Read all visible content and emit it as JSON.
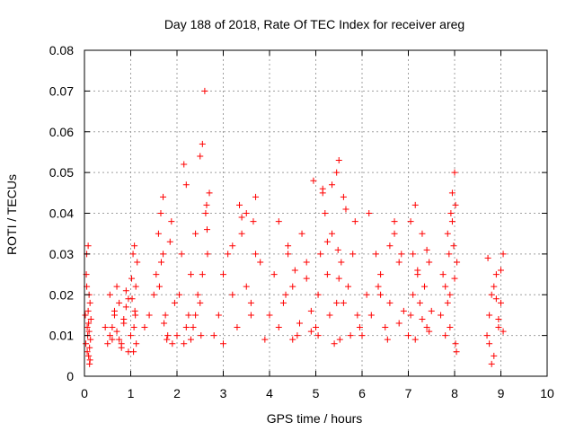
{
  "chart_data": {
    "type": "scatter",
    "title": "Day 188 of 2018, Rate Of TEC Index for receiver areg",
    "xlabel": "GPS time / hours",
    "ylabel": "ROTI / TECUs",
    "xlim": [
      0,
      10
    ],
    "ylim": [
      0,
      0.08
    ],
    "grid": true,
    "marker": "+",
    "color": "#ff0000",
    "x_ticks": [
      0,
      1,
      2,
      3,
      4,
      5,
      6,
      7,
      8,
      9,
      10
    ],
    "x_tick_labels": [
      "0",
      "1",
      "2",
      "3",
      "4",
      "5",
      "6",
      "7",
      "8",
      "9",
      "10"
    ],
    "y_ticks": [
      0,
      0.01,
      0.02,
      0.03,
      0.04,
      0.05,
      0.06,
      0.07,
      0.08
    ],
    "y_tick_labels": [
      "0",
      "0.01",
      "0.02",
      "0.03",
      "0.04",
      "0.05",
      "0.06",
      "0.07",
      "0.08"
    ],
    "series": [
      {
        "name": "ROTI",
        "x": [
          0.02,
          0.03,
          0.05,
          0.06,
          0.07,
          0.08,
          0.09,
          0.1,
          0.11,
          0.12,
          0.13,
          0.14,
          0.04,
          0.06,
          0.08,
          0.1,
          0.12,
          0.05,
          0.09,
          0.11,
          0.45,
          0.5,
          0.55,
          0.6,
          0.65,
          0.7,
          0.75,
          0.8,
          0.85,
          0.9,
          0.95,
          0.55,
          0.65,
          0.75,
          0.85,
          0.95,
          0.6,
          0.7,
          0.8,
          0.9,
          1.0,
          1.02,
          1.05,
          1.08,
          1.1,
          1.12,
          1.14,
          1.03,
          1.07,
          1.11,
          1.06,
          1.09,
          1.3,
          1.4,
          1.5,
          1.55,
          1.6,
          1.65,
          1.7,
          1.75,
          1.8,
          1.85,
          1.9,
          1.95,
          1.62,
          1.66,
          1.72,
          1.78,
          1.7,
          1.88,
          2.0,
          2.05,
          2.1,
          2.15,
          2.2,
          2.25,
          2.3,
          2.35,
          2.4,
          2.45,
          2.5,
          2.55,
          2.6,
          2.65,
          2.7,
          2.15,
          2.2,
          2.5,
          2.52,
          2.55,
          2.62,
          2.64,
          2.66,
          2.4,
          2.3,
          2.8,
          2.9,
          3.0,
          3.1,
          3.2,
          3.3,
          3.4,
          3.5,
          3.6,
          3.7,
          3.8,
          3.9,
          3.2,
          3.35,
          3.5,
          3.6,
          3.7,
          3.65,
          3.0,
          3.4,
          4.0,
          4.1,
          4.2,
          4.3,
          4.4,
          4.5,
          4.6,
          4.7,
          4.8,
          4.9,
          4.2,
          4.35,
          4.5,
          4.55,
          4.65,
          4.8,
          4.9,
          4.4,
          5.0,
          5.05,
          5.1,
          5.15,
          5.2,
          5.25,
          5.3,
          5.35,
          5.4,
          5.45,
          5.5,
          5.55,
          5.6,
          5.65,
          5.7,
          5.75,
          5.8,
          5.85,
          5.9,
          5.95,
          5.15,
          5.25,
          5.35,
          5.45,
          5.5,
          5.48,
          5.52,
          5.6,
          4.95,
          5.05,
          6.0,
          6.1,
          6.2,
          6.3,
          6.4,
          6.5,
          6.6,
          6.7,
          6.8,
          6.9,
          6.15,
          6.35,
          6.55,
          6.7,
          6.8,
          6.85,
          6.6,
          6.4,
          7.0,
          7.05,
          7.1,
          7.15,
          7.2,
          7.25,
          7.3,
          7.35,
          7.4,
          7.45,
          7.5,
          7.05,
          7.1,
          7.15,
          7.2,
          7.3,
          7.4,
          7.45,
          7.7,
          7.75,
          7.8,
          7.85,
          7.88,
          7.9,
          7.92,
          7.95,
          7.98,
          8.0,
          8.02,
          8.05,
          7.85,
          7.9,
          7.95,
          8.0,
          8.02,
          7.8,
          8.04,
          8.7,
          8.75,
          8.8,
          8.85,
          8.9,
          8.95,
          9.0,
          9.05,
          8.75,
          8.85,
          8.95,
          9.0,
          8.8,
          8.9,
          9.05,
          8.72
        ],
        "y": [
          0.015,
          0.008,
          0.03,
          0.012,
          0.01,
          0.032,
          0.005,
          0.02,
          0.003,
          0.018,
          0.009,
          0.014,
          0.025,
          0.006,
          0.016,
          0.011,
          0.004,
          0.022,
          0.013,
          0.007,
          0.012,
          0.008,
          0.02,
          0.009,
          0.015,
          0.011,
          0.018,
          0.007,
          0.013,
          0.021,
          0.006,
          0.01,
          0.016,
          0.009,
          0.014,
          0.019,
          0.012,
          0.022,
          0.008,
          0.017,
          0.01,
          0.024,
          0.03,
          0.032,
          0.015,
          0.008,
          0.028,
          0.019,
          0.012,
          0.022,
          0.006,
          0.016,
          0.012,
          0.015,
          0.02,
          0.025,
          0.035,
          0.04,
          0.044,
          0.015,
          0.01,
          0.033,
          0.008,
          0.018,
          0.022,
          0.028,
          0.013,
          0.009,
          0.03,
          0.038,
          0.01,
          0.02,
          0.03,
          0.052,
          0.047,
          0.015,
          0.025,
          0.012,
          0.035,
          0.02,
          0.054,
          0.057,
          0.07,
          0.036,
          0.045,
          0.008,
          0.012,
          0.018,
          0.01,
          0.025,
          0.04,
          0.042,
          0.03,
          0.015,
          0.009,
          0.01,
          0.015,
          0.025,
          0.03,
          0.02,
          0.012,
          0.035,
          0.04,
          0.018,
          0.044,
          0.028,
          0.009,
          0.032,
          0.042,
          0.022,
          0.015,
          0.03,
          0.038,
          0.008,
          0.039,
          0.015,
          0.025,
          0.012,
          0.018,
          0.03,
          0.022,
          0.01,
          0.035,
          0.028,
          0.016,
          0.038,
          0.02,
          0.009,
          0.026,
          0.013,
          0.024,
          0.011,
          0.032,
          0.012,
          0.02,
          0.03,
          0.045,
          0.04,
          0.025,
          0.015,
          0.035,
          0.008,
          0.05,
          0.053,
          0.028,
          0.018,
          0.041,
          0.022,
          0.01,
          0.03,
          0.038,
          0.015,
          0.012,
          0.046,
          0.033,
          0.047,
          0.018,
          0.024,
          0.031,
          0.009,
          0.044,
          0.048,
          0.01,
          0.01,
          0.02,
          0.015,
          0.03,
          0.025,
          0.012,
          0.018,
          0.035,
          0.028,
          0.016,
          0.04,
          0.022,
          0.009,
          0.038,
          0.013,
          0.03,
          0.032,
          0.02,
          0.01,
          0.015,
          0.03,
          0.042,
          0.025,
          0.018,
          0.035,
          0.022,
          0.012,
          0.028,
          0.016,
          0.038,
          0.02,
          0.009,
          0.026,
          0.014,
          0.031,
          0.011,
          0.015,
          0.025,
          0.01,
          0.035,
          0.03,
          0.02,
          0.04,
          0.045,
          0.032,
          0.05,
          0.008,
          0.028,
          0.018,
          0.012,
          0.038,
          0.024,
          0.042,
          0.022,
          0.006,
          0.01,
          0.015,
          0.02,
          0.005,
          0.025,
          0.012,
          0.018,
          0.03,
          0.008,
          0.022,
          0.014,
          0.026,
          0.003,
          0.019,
          0.011,
          0.029
        ]
      }
    ]
  }
}
